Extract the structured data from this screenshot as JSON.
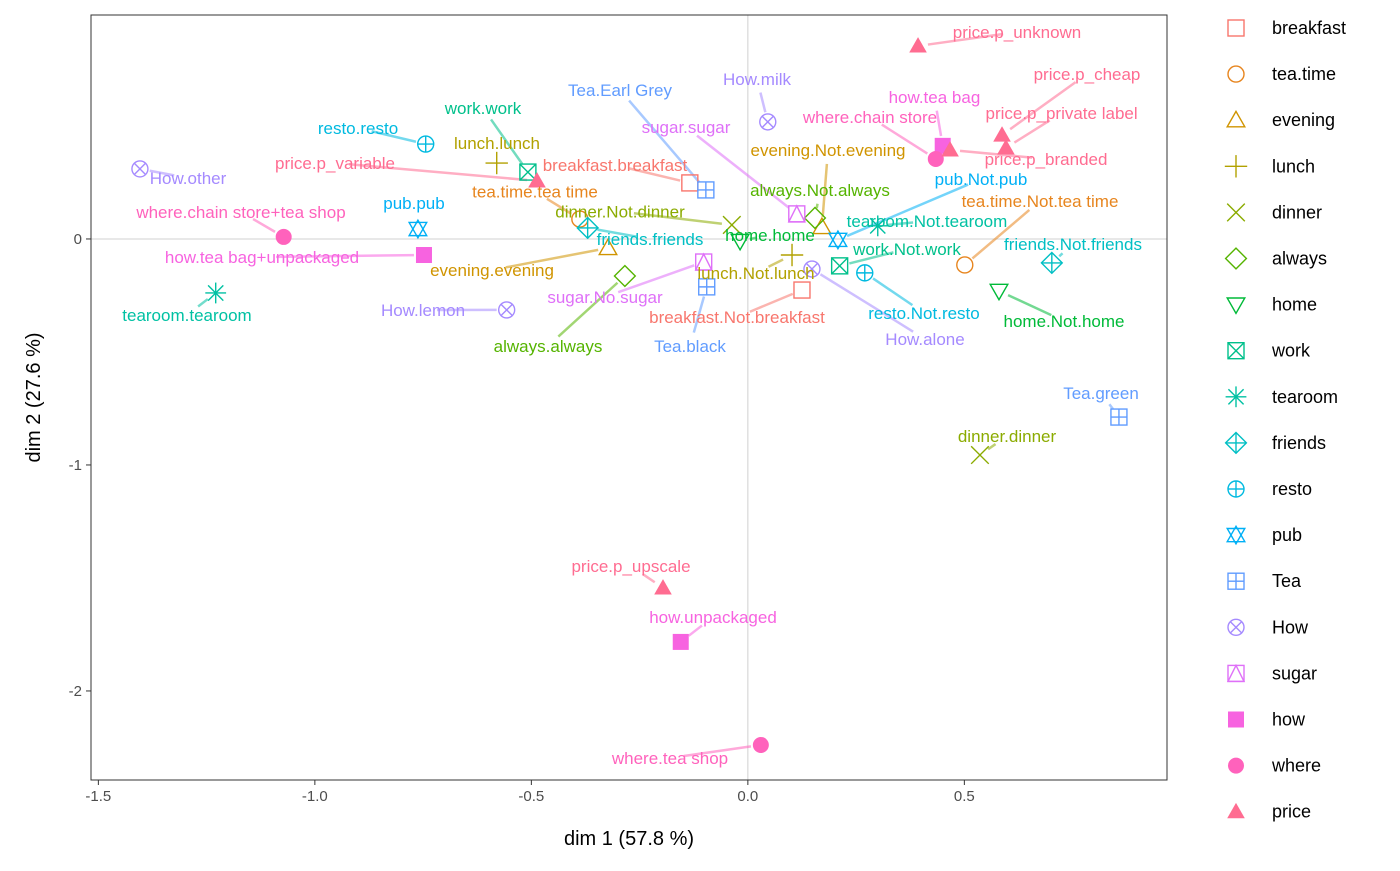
{
  "chart_data": {
    "type": "scatter",
    "xlabel": "dim 1 (57.8 %)",
    "ylabel": "dim 2 (27.6 %)",
    "xlim": [
      -1.517,
      0.968
    ],
    "ylim": [
      -2.394,
      0.991
    ],
    "xticks": [
      -1.5,
      -1.0,
      -0.5,
      0,
      0.5
    ],
    "xtick_labels": [
      "-1.5",
      "-1.0",
      "-0.5",
      "0.0",
      "0.5"
    ],
    "yticks": [
      -2,
      -1,
      0
    ],
    "ytick_labels": [
      "-2",
      "-1",
      "0"
    ],
    "legend_position": "right",
    "groups": [
      {
        "name": "breakfast",
        "shape": "square-open",
        "color": "#F8766D"
      },
      {
        "name": "tea.time",
        "shape": "circle-open",
        "color": "#E7851E"
      },
      {
        "name": "evening",
        "shape": "triangle-open",
        "color": "#D09400"
      },
      {
        "name": "lunch",
        "shape": "plus",
        "color": "#B2A100"
      },
      {
        "name": "dinner",
        "shape": "cross",
        "color": "#8BAB00"
      },
      {
        "name": "always",
        "shape": "diamond-open",
        "color": "#55B400"
      },
      {
        "name": "home",
        "shape": "triangle-down-open",
        "color": "#00BA38"
      },
      {
        "name": "work",
        "shape": "square-cross",
        "color": "#00C08B"
      },
      {
        "name": "tearoom",
        "shape": "asterisk",
        "color": "#00C1A3"
      },
      {
        "name": "friends",
        "shape": "diamond-plus",
        "color": "#00BFC4"
      },
      {
        "name": "resto",
        "shape": "circle-plus",
        "color": "#00BAE0"
      },
      {
        "name": "pub",
        "shape": "star-of-david",
        "color": "#00B0F6"
      },
      {
        "name": "Tea",
        "shape": "square-plus",
        "color": "#619CFF"
      },
      {
        "name": "How",
        "shape": "circle-cross",
        "color": "#A58AFF"
      },
      {
        "name": "sugar",
        "shape": "square-triangle",
        "color": "#DF70F8"
      },
      {
        "name": "how",
        "shape": "square-filled",
        "color": "#F763E0"
      },
      {
        "name": "where",
        "shape": "circle-filled",
        "color": "#FF62BC"
      },
      {
        "name": "price",
        "shape": "triangle-filled",
        "color": "#FF6C91"
      }
    ],
    "points": [
      {
        "group": "breakfast",
        "label": "breakfast.breakfast",
        "x": -0.134,
        "y": 0.248
      },
      {
        "group": "breakfast",
        "label": "breakfast.Not.breakfast",
        "x": 0.125,
        "y": -0.226
      },
      {
        "group": "tea.time",
        "label": "tea.time.tea time",
        "x": -0.388,
        "y": 0.088
      },
      {
        "group": "tea.time",
        "label": "tea.time.Not.tea time",
        "x": 0.501,
        "y": -0.115
      },
      {
        "group": "evening",
        "label": "evening.evening",
        "x": -0.323,
        "y": -0.04
      },
      {
        "group": "evening",
        "label": "evening.Not.evening",
        "x": 0.171,
        "y": 0.053
      },
      {
        "group": "lunch",
        "label": "lunch.lunch",
        "x": -0.58,
        "y": 0.336
      },
      {
        "group": "lunch",
        "label": "lunch.Not.lunch",
        "x": 0.102,
        "y": -0.071
      },
      {
        "group": "dinner",
        "label": "dinner.dinner",
        "x": 0.536,
        "y": -0.956
      },
      {
        "group": "dinner",
        "label": "dinner.Not.dinner",
        "x": -0.037,
        "y": 0.062
      },
      {
        "group": "always",
        "label": "always.always",
        "x": -0.284,
        "y": -0.164
      },
      {
        "group": "always",
        "label": "always.Not.always",
        "x": 0.155,
        "y": 0.093
      },
      {
        "group": "home",
        "label": "home.home",
        "x": -0.018,
        "y": -0.009
      },
      {
        "group": "home",
        "label": "home.Not.home",
        "x": 0.58,
        "y": -0.23
      },
      {
        "group": "work",
        "label": "work.work",
        "x": -0.508,
        "y": 0.296
      },
      {
        "group": "work",
        "label": "work.Not.work",
        "x": 0.212,
        "y": -0.119
      },
      {
        "group": "tearoom",
        "label": "tearoom.tearoom",
        "x": -1.229,
        "y": -0.239
      },
      {
        "group": "tearoom",
        "label": "tearoom.Not.tearoom",
        "x": 0.3,
        "y": 0.058
      },
      {
        "group": "friends",
        "label": "friends.friends",
        "x": -0.37,
        "y": 0.049
      },
      {
        "group": "friends",
        "label": "friends.Not.friends",
        "x": 0.702,
        "y": -0.106
      },
      {
        "group": "resto",
        "label": "resto.resto",
        "x": -0.744,
        "y": 0.42
      },
      {
        "group": "resto",
        "label": "resto.Not.resto",
        "x": 0.27,
        "y": -0.15
      },
      {
        "group": "pub",
        "label": "pub.pub",
        "x": -0.762,
        "y": 0.044
      },
      {
        "group": "pub",
        "label": "pub.Not.pub",
        "x": 0.208,
        "y": -0.004
      },
      {
        "group": "Tea",
        "label": "Tea.Earl Grey",
        "x": -0.097,
        "y": 0.217
      },
      {
        "group": "Tea",
        "label": "Tea.black",
        "x": -0.095,
        "y": -0.212
      },
      {
        "group": "Tea",
        "label": "Tea.green",
        "x": 0.857,
        "y": -0.788
      },
      {
        "group": "How",
        "label": "How.milk",
        "x": 0.046,
        "y": 0.518
      },
      {
        "group": "How",
        "label": "How.other",
        "x": -1.404,
        "y": 0.31
      },
      {
        "group": "How",
        "label": "How.lemon",
        "x": -0.557,
        "y": -0.314
      },
      {
        "group": "How",
        "label": "How.alone",
        "x": 0.148,
        "y": -0.133
      },
      {
        "group": "sugar",
        "label": "sugar.sugar",
        "x": 0.113,
        "y": 0.111
      },
      {
        "group": "sugar",
        "label": "sugar.No.sugar",
        "x": -0.102,
        "y": -0.102
      },
      {
        "group": "how",
        "label": "how.tea bag",
        "x": 0.45,
        "y": 0.412
      },
      {
        "group": "how",
        "label": "how.unpackaged",
        "x": -0.155,
        "y": -1.783
      },
      {
        "group": "how",
        "label": "how.tea bag+unpackaged",
        "x": -0.748,
        "y": -0.071
      },
      {
        "group": "where",
        "label": "where.chain store",
        "x": 0.434,
        "y": 0.354
      },
      {
        "group": "where",
        "label": "where.chain store+tea shop",
        "x": -1.072,
        "y": 0.009
      },
      {
        "group": "where",
        "label": "where.tea shop",
        "x": 0.03,
        "y": -2.239
      },
      {
        "group": "price",
        "label": "price.p_unknown",
        "x": 0.393,
        "y": 0.854
      },
      {
        "group": "price",
        "label": "price.p_cheap",
        "x": 0.587,
        "y": 0.46
      },
      {
        "group": "price",
        "label": "price.p_private label",
        "x": 0.596,
        "y": 0.403
      },
      {
        "group": "price",
        "label": "price.p_branded",
        "x": 0.467,
        "y": 0.394
      },
      {
        "group": "price",
        "label": "price.p_variable",
        "x": -0.487,
        "y": 0.257
      },
      {
        "group": "price",
        "label": "price.p_upscale",
        "x": -0.196,
        "y": -1.544
      }
    ]
  }
}
